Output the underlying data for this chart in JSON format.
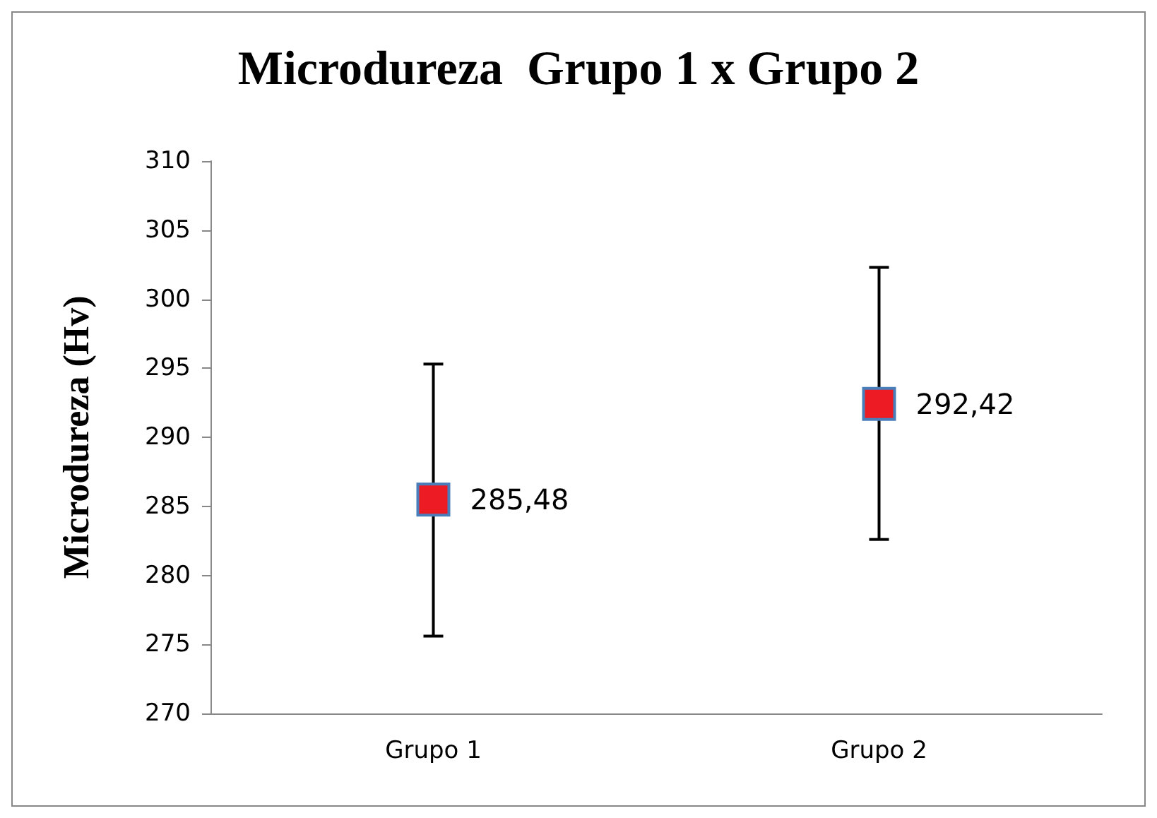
{
  "chart_data": {
    "type": "scatter",
    "title": "Microdureza  Grupo 1 x Grupo 2",
    "ylabel": "Microdureza (Hv)",
    "categories": [
      "Grupo 1",
      "Grupo 2"
    ],
    "series": [
      {
        "color": "#ed1c24",
        "values": [
          285.48,
          292.42
        ],
        "errors": [
          [
            275.6,
            295.3
          ],
          [
            282.6,
            302.3
          ]
        ],
        "value_labels": [
          "285,48",
          "292,42"
        ]
      }
    ],
    "ylim": [
      270,
      310
    ],
    "yticks": [
      270,
      275,
      280,
      285,
      290,
      295,
      300,
      305,
      310
    ],
    "grid": false,
    "marker": "square"
  }
}
